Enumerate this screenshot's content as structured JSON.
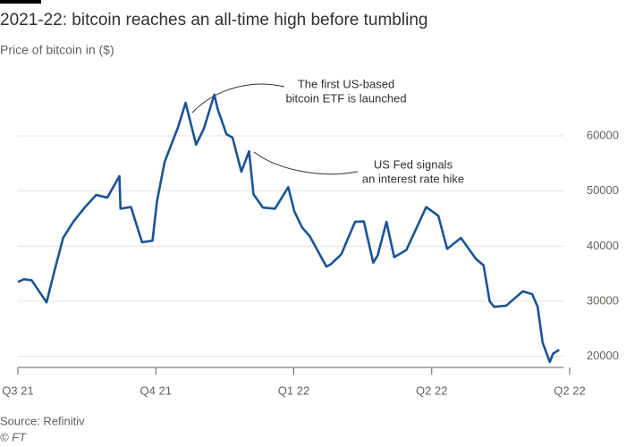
{
  "chart_data": {
    "type": "line",
    "title": "2021-22: bitcoin reaches an all-time high before tumbling",
    "subtitle": "Price of bitcoin in ($)",
    "source": "Source: Refinitiv",
    "credit": "© FT",
    "color": "#1a5494",
    "grid": true,
    "x": [
      2021.5,
      2021.511,
      2021.525,
      2021.552,
      2021.566,
      2021.582,
      2021.601,
      2021.621,
      2021.642,
      2021.662,
      2021.684,
      2021.686,
      2021.705,
      2021.725,
      2021.744,
      2021.752,
      2021.766,
      2021.79,
      2021.804,
      2021.823,
      2021.837,
      2021.856,
      2021.862,
      2021.878,
      2021.889,
      2021.905,
      2021.919,
      2021.927,
      2021.944,
      2021.966,
      2021.99,
      2022.001,
      2022.015,
      2022.029,
      2022.059,
      2022.067,
      2022.086,
      2022.111,
      2022.127,
      2022.144,
      2022.152,
      2022.168,
      2022.182,
      2022.204,
      2022.24,
      2022.262,
      2022.278,
      2022.303,
      2022.33,
      2022.344,
      2022.355,
      2022.363,
      2022.385,
      2022.415,
      2022.432,
      2022.442,
      2022.451,
      2022.464,
      2022.47,
      2022.481
    ],
    "values": [
      33500,
      34000,
      33800,
      29800,
      35400,
      41500,
      44500,
      47000,
      49300,
      48800,
      52700,
      46800,
      47100,
      40700,
      41000,
      48100,
      55300,
      61500,
      66000,
      58400,
      61300,
      67500,
      64900,
      60300,
      59700,
      53500,
      57200,
      49400,
      47000,
      46800,
      50700,
      46300,
      43400,
      41800,
      36300,
      36700,
      38500,
      44400,
      44500,
      37000,
      38300,
      44400,
      38000,
      39300,
      47100,
      45500,
      39500,
      41500,
      37700,
      36500,
      30000,
      29000,
      29200,
      31800,
      31300,
      29000,
      22500,
      19000,
      20500,
      21200
    ],
    "xlim": [
      2021.5,
      2022.5
    ],
    "xticks": [
      {
        "value": 2021.5,
        "label": "Q3 21"
      },
      {
        "value": 2021.75,
        "label": "Q4 21"
      },
      {
        "value": 2022.0,
        "label": "Q1 22"
      },
      {
        "value": 2022.25,
        "label": "Q2 22"
      },
      {
        "value": 2022.5,
        "label": "Q2 22"
      }
    ],
    "ylim": [
      18000,
      72000
    ],
    "yticks": [
      20000,
      30000,
      40000,
      50000,
      60000
    ],
    "annotations": [
      {
        "lines": [
          "The first US-based",
          "bitcoin ETF is launched"
        ]
      },
      {
        "lines": [
          "US Fed signals",
          "an interest rate hike"
        ]
      }
    ]
  }
}
